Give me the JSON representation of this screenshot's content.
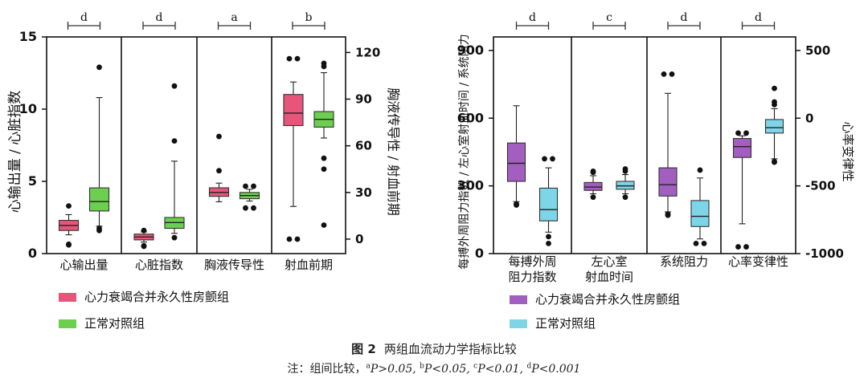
{
  "figure": {
    "title_label": "图 2",
    "title_text": "两组血流动力学指标比较",
    "note": {
      "prefix": "注：组间比较，",
      "items": [
        {
          "sup": "a",
          "text": "P>0.05, "
        },
        {
          "sup": "b",
          "text": "P<0.05, "
        },
        {
          "sup": "c",
          "text": "P<0.01, "
        },
        {
          "sup": "d",
          "text": "P<0.001"
        }
      ]
    }
  },
  "colors": {
    "left_group1": "#e8557a",
    "left_group2": "#6ccf4f",
    "right_group1": "#a25fbf",
    "right_group2": "#7dd6e8",
    "axis": "#111111"
  },
  "chart_data": [
    {
      "type": "box",
      "ylabel_left": "心输出量 / 心脏指数",
      "ylabel_right": "胸液传导性 / 射血前期",
      "ylim_left": [
        0,
        15
      ],
      "yticks_left": [
        "0",
        "5",
        "10",
        "15"
      ],
      "ylim_right": [
        -9.3,
        130
      ],
      "yticks_right": [
        "0",
        "30",
        "60",
        "90",
        "120"
      ],
      "categories": [
        "心输出量",
        "心脏指数",
        "胸液传导性",
        "射血前期"
      ],
      "category_axis": [
        "left",
        "left",
        "right",
        "right"
      ],
      "significance": [
        "d",
        "d",
        "a",
        "b"
      ],
      "legend": [
        "心力衰竭合并永久性房颤组",
        "正常对照组"
      ],
      "series": [
        {
          "name": "心力衰竭合并永久性房颤组",
          "boxes": [
            {
              "min": 1.3,
              "q1": 1.6,
              "median": 1.95,
              "q3": 2.3,
              "max": 2.7,
              "outliers": [
                0.6,
                0.65,
                3.3
              ]
            },
            {
              "min": 0.8,
              "q1": 0.95,
              "median": 1.15,
              "q3": 1.35,
              "max": 1.5,
              "outliers": [
                0.5,
                0.55,
                1.6
              ]
            },
            {
              "min": 24,
              "q1": 27.5,
              "median": 30,
              "q3": 33,
              "max": 36,
              "outliers": [
                44,
                66
              ]
            },
            {
              "min": 21,
              "q1": 73,
              "median": 81,
              "q3": 93,
              "max": 101,
              "outliers": [
                0,
                0,
                116,
                116
              ]
            }
          ]
        },
        {
          "name": "正常对照组",
          "boxes": [
            {
              "min": 1.9,
              "q1": 2.95,
              "median": 3.6,
              "q3": 4.55,
              "max": 10.8,
              "outliers": [
                1.6,
                1.75,
                12.9
              ]
            },
            {
              "min": 1.4,
              "q1": 1.75,
              "median": 2.15,
              "q3": 2.5,
              "max": 6.4,
              "outliers": [
                1.1,
                7.8,
                11.6
              ]
            },
            {
              "min": 24.5,
              "q1": 26,
              "median": 28,
              "q3": 30,
              "max": 32,
              "outliers": [
                20,
                20,
                34,
                34
              ]
            },
            {
              "min": 65,
              "q1": 72,
              "median": 77,
              "q3": 82,
              "max": 107,
              "outliers": [
                9,
                45,
                52,
                113,
                111
              ]
            }
          ]
        }
      ]
    },
    {
      "type": "box",
      "ylabel_left": "每搏外周阻力指数 / 左心室射血时间 / 系统阻力",
      "ylabel_right": "心率变律性",
      "ylim_left": [
        0,
        960
      ],
      "yticks_left": [
        "0",
        "300",
        "600",
        "900"
      ],
      "ylim_right": [
        -1000,
        600
      ],
      "yticks_right": [
        "-1000",
        "-500",
        "0",
        "500"
      ],
      "categories": [
        "每搏外周\n阻力指数",
        "左心室\n射血时间",
        "系统阻力",
        "心率变律性"
      ],
      "category_axis": [
        "left",
        "left",
        "left",
        "right"
      ],
      "significance": [
        "d",
        "c",
        "d",
        "d"
      ],
      "legend": [
        "心力衰竭合并永久性房颤组",
        "正常对照组"
      ],
      "series": [
        {
          "name": "心力衰竭合并永久性房颤组",
          "boxes": [
            {
              "min": 230,
              "q1": 320,
              "median": 400,
              "q3": 490,
              "max": 655,
              "outliers": [
                215,
                220
              ]
            },
            {
              "min": 265,
              "q1": 280,
              "median": 295,
              "q3": 315,
              "max": 345,
              "outliers": [
                250,
                365,
                360
              ]
            },
            {
              "min": 185,
              "q1": 255,
              "median": 305,
              "q3": 380,
              "max": 710,
              "outliers": [
                170,
                175,
                795,
                795
              ]
            },
            {
              "min": -780,
              "q1": -290,
              "median": -210,
              "q3": -150,
              "max": -130,
              "outliers": [
                -950,
                -950,
                -110,
                -110
              ]
            }
          ]
        },
        {
          "name": "正常对照组",
          "boxes": [
            {
              "min": 95,
              "q1": 145,
              "median": 195,
              "q3": 290,
              "max": 380,
              "outliers": [
                45,
                75,
                420,
                420
              ]
            },
            {
              "min": 265,
              "q1": 285,
              "median": 300,
              "q3": 320,
              "max": 350,
              "outliers": [
                250,
                375,
                365
              ]
            },
            {
              "min": 65,
              "q1": 120,
              "median": 165,
              "q3": 235,
              "max": 335,
              "outliers": [
                45,
                45,
                370
              ]
            },
            {
              "min": -300,
              "q1": -110,
              "median": -70,
              "q3": -10,
              "max": 70,
              "outliers": [
                -325,
                -320,
                100,
                120,
                220
              ]
            }
          ]
        }
      ]
    }
  ]
}
